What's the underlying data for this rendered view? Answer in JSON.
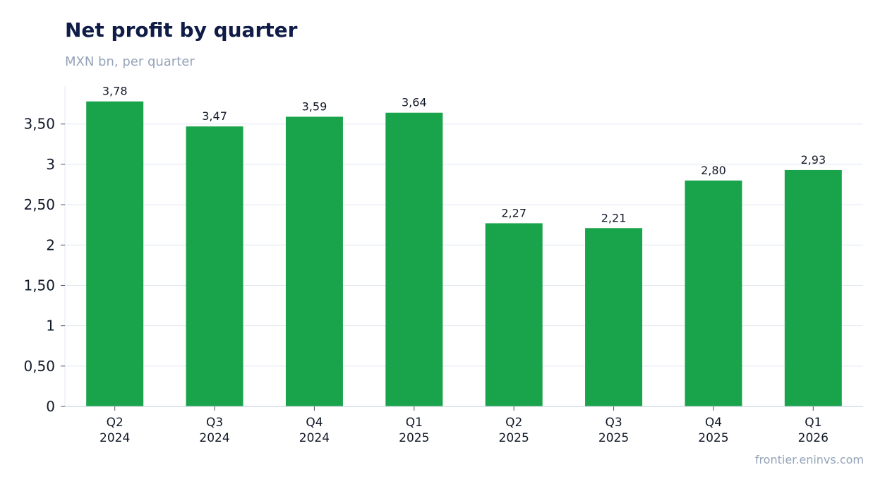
{
  "header": {
    "title": "Net profit by quarter",
    "subtitle": "MXN bn, per quarter"
  },
  "footer": {
    "source": "frontier.eninvs.com"
  },
  "colors": {
    "bar": "#19a34a",
    "grid": "#e2e8f0",
    "axis": "#cbd5e1",
    "tick_text": "#111827",
    "label_text": "#111827"
  },
  "chart_data": {
    "type": "bar",
    "categories": [
      [
        "Q2",
        "2024"
      ],
      [
        "Q3",
        "2024"
      ],
      [
        "Q4",
        "2024"
      ],
      [
        "Q1",
        "2025"
      ],
      [
        "Q2",
        "2025"
      ],
      [
        "Q3",
        "2025"
      ],
      [
        "Q4",
        "2025"
      ],
      [
        "Q1",
        "2026"
      ]
    ],
    "values": [
      3.78,
      3.47,
      3.59,
      3.64,
      2.27,
      2.21,
      2.8,
      2.93
    ],
    "value_labels": [
      "3,78",
      "3,47",
      "3,59",
      "3,64",
      "2,27",
      "2,21",
      "2,80",
      "2,93"
    ],
    "title": "Net profit by quarter",
    "subtitle": "MXN bn, per quarter",
    "xlabel": "",
    "ylabel": "",
    "ylim": [
      0,
      3.97
    ],
    "yticks": [
      0,
      0.5,
      1,
      1.5,
      2,
      2.5,
      3,
      3.5
    ],
    "ytick_labels": [
      "0",
      "0,50",
      "1",
      "1,50",
      "2",
      "2,50",
      "3",
      "3,50"
    ],
    "grid": true,
    "legend": "none"
  }
}
